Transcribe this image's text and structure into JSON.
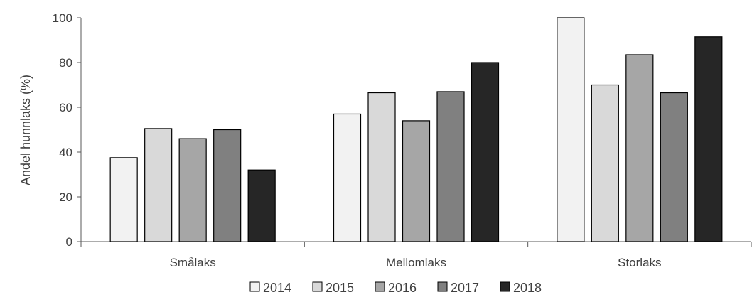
{
  "chart_data": {
    "type": "bar",
    "ylabel": "Andel hunnlaks (%)",
    "xlabel": "",
    "ylim": [
      0,
      100
    ],
    "yticks": [
      0,
      20,
      40,
      60,
      80,
      100
    ],
    "grid": false,
    "legend_position": "bottom",
    "categories": [
      "Smålaks",
      "Mellomlaks",
      "Storlaks"
    ],
    "series": [
      {
        "name": "2014",
        "color": "#f2f2f2",
        "values": [
          37.5,
          57,
          100
        ]
      },
      {
        "name": "2015",
        "color": "#d9d9d9",
        "values": [
          50.5,
          66.5,
          70
        ]
      },
      {
        "name": "2016",
        "color": "#a6a6a6",
        "values": [
          46,
          54,
          83.5
        ]
      },
      {
        "name": "2017",
        "color": "#808080",
        "values": [
          50,
          67,
          66.5
        ]
      },
      {
        "name": "2018",
        "color": "#262626",
        "values": [
          32,
          80,
          91.5
        ]
      }
    ]
  }
}
